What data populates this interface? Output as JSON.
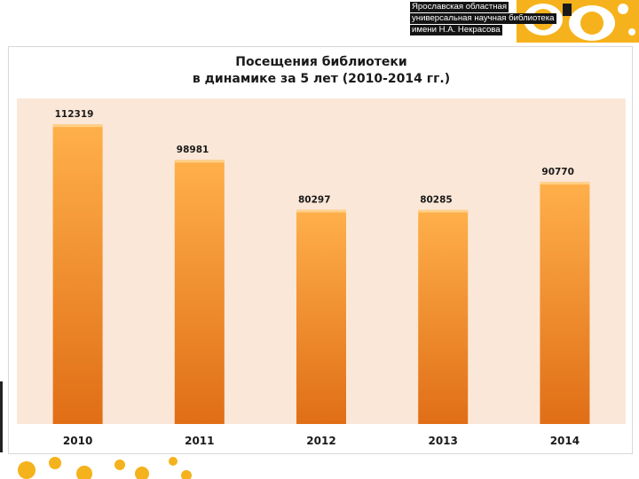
{
  "header": {
    "library_name_lines": [
      "Ярославская областная",
      "универсальная научная библиотека",
      "имени Н.А. Некрасова"
    ]
  },
  "colors": {
    "bar_top": "#ffb04a",
    "bar_bottom": "#e06e16",
    "plot_bg": "#fbe7d8",
    "accent": "#f2a81c"
  },
  "chart_data": {
    "type": "bar",
    "title_lines": [
      "Посещения библиотеки",
      "в динамике за 5 лет (2010-2014 гг.)"
    ],
    "categories": [
      "2010",
      "2011",
      "2012",
      "2013",
      "2014"
    ],
    "values": [
      112319,
      98981,
      80297,
      80285,
      90770
    ],
    "value_labels": [
      "112319",
      "98981",
      "80297",
      "80285",
      "90770"
    ],
    "ylim": [
      0,
      122000
    ],
    "grid": false,
    "legend": "none"
  }
}
